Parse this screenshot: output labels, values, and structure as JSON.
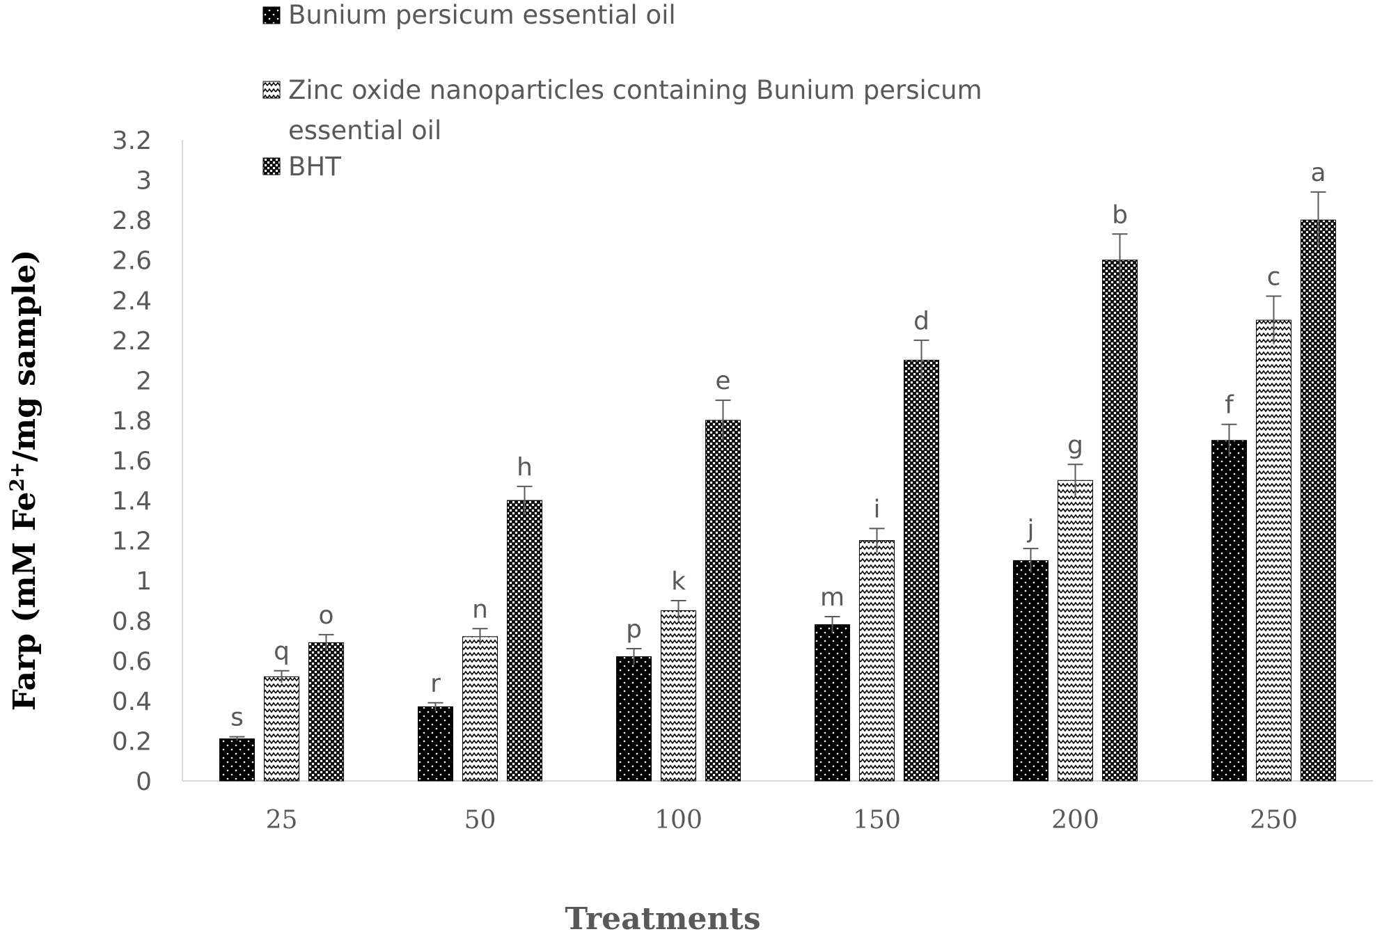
{
  "chart_data": {
    "type": "bar",
    "title": "",
    "xlabel": "Treatments",
    "ylabel_main": "Farp (mM Fe",
    "ylabel_sup": "2+",
    "ylabel_rest": "/mg sample)",
    "ylim": [
      0,
      3.2
    ],
    "yticks": [
      "0",
      "0.2",
      "0.4",
      "0.6",
      "0.8",
      "1",
      "1.2",
      "1.4",
      "1.6",
      "1.8",
      "2",
      "2.2",
      "2.4",
      "2.6",
      "2.8",
      "3",
      "3.2"
    ],
    "categories": [
      "25",
      "50",
      "100",
      "150",
      "200",
      "250"
    ],
    "grid": false,
    "legend_position": "top",
    "series": [
      {
        "name": "Bunium persicum essential oil",
        "legend_lines": [
          "Bunium persicum essential oil"
        ],
        "pattern": "dots",
        "values": [
          0.21,
          0.37,
          0.62,
          0.78,
          1.1,
          1.7
        ],
        "errors": [
          0.01,
          0.02,
          0.04,
          0.04,
          0.06,
          0.08
        ],
        "letters": [
          "s",
          "r",
          "p",
          "m",
          "j",
          "f"
        ]
      },
      {
        "name": "Zinc oxide nanoparticles containing Bunium persicum essential oil",
        "legend_lines": [
          "Zinc oxide nanoparticles containing Bunium persicum",
          "essential oil"
        ],
        "pattern": "wave",
        "values": [
          0.52,
          0.72,
          0.85,
          1.2,
          1.5,
          2.3
        ],
        "errors": [
          0.03,
          0.04,
          0.05,
          0.06,
          0.08,
          0.12
        ],
        "letters": [
          "q",
          "n",
          "k",
          "i",
          "g",
          "c"
        ]
      },
      {
        "name": "BHT",
        "legend_lines": [
          "BHT"
        ],
        "pattern": "checker",
        "values": [
          0.69,
          1.4,
          1.8,
          2.1,
          2.6,
          2.8
        ],
        "errors": [
          0.04,
          0.07,
          0.1,
          0.1,
          0.13,
          0.14
        ],
        "letters": [
          "o",
          "h",
          "e",
          "d",
          "b",
          "a"
        ]
      }
    ]
  }
}
